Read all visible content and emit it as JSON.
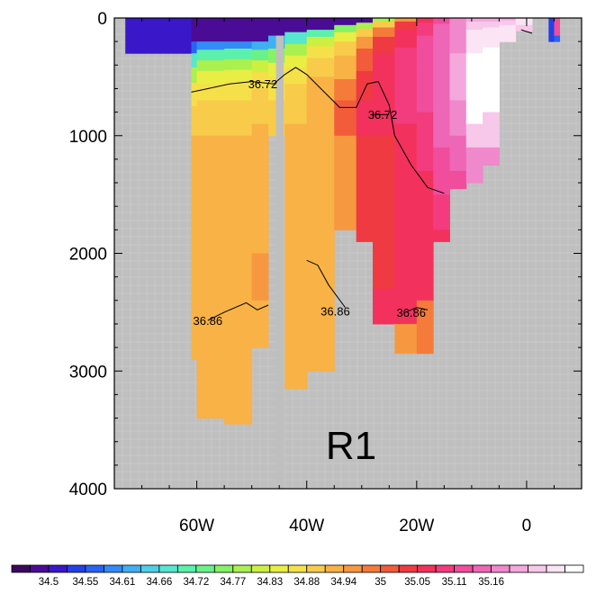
{
  "chart_data": {
    "type": "heatmap",
    "title": "",
    "panel_label": "R1",
    "xlabel": "",
    "ylabel": "",
    "xlim": [
      -75,
      10
    ],
    "ylim": [
      4000,
      0
    ],
    "x_ticks": [
      {
        "value": -60,
        "label": "60W"
      },
      {
        "value": -40,
        "label": "40W"
      },
      {
        "value": -20,
        "label": "20W"
      },
      {
        "value": 0,
        "label": "0"
      }
    ],
    "y_ticks": [
      {
        "value": 0,
        "label": "0"
      },
      {
        "value": 1000,
        "label": "1000"
      },
      {
        "value": 2000,
        "label": "2000"
      },
      {
        "value": 3000,
        "label": "3000"
      },
      {
        "value": 4000,
        "label": "4000"
      }
    ],
    "background_color": "#bfbfbf",
    "colorbar": {
      "colors": [
        "#3a0a5e",
        "#4a0c94",
        "#3a17c8",
        "#2440e6",
        "#2a63f2",
        "#338bf5",
        "#3fb0f2",
        "#4fcfe8",
        "#57e6cf",
        "#5bf0ac",
        "#6af28a",
        "#86f266",
        "#aaf04f",
        "#ccf042",
        "#e8ee44",
        "#f5e04a",
        "#f8cb4b",
        "#f8b245",
        "#f6983f",
        "#f47b39",
        "#f25c3a",
        "#f03a42",
        "#f2325c",
        "#f23c7e",
        "#f04d9c",
        "#ee66b6",
        "#f088cc",
        "#f4a8dc",
        "#f7c8ea",
        "#fbe4f4",
        "#ffffff"
      ],
      "labels": [
        "34.5",
        "34.55",
        "34.61",
        "34.66",
        "34.72",
        "34.77",
        "34.83",
        "34.88",
        "34.94",
        "35",
        "35.05",
        "35.11",
        "35.16"
      ]
    },
    "columns": [
      {
        "x0": -73.0,
        "x1": -61.0,
        "layers": [
          [
            0,
            300,
            2
          ]
        ]
      },
      {
        "x0": -61.0,
        "x1": -60.0,
        "layers": [
          [
            0,
            200,
            1
          ],
          [
            200,
            300,
            4
          ],
          [
            300,
            420,
            8
          ],
          [
            420,
            550,
            12
          ],
          [
            550,
            750,
            15
          ],
          [
            750,
            1000,
            16
          ],
          [
            1000,
            2200,
            17
          ],
          [
            2200,
            2900,
            17
          ]
        ]
      },
      {
        "x0": -60.0,
        "x1": -55.0,
        "layers": [
          [
            0,
            200,
            1
          ],
          [
            200,
            270,
            5
          ],
          [
            270,
            360,
            9
          ],
          [
            360,
            450,
            12
          ],
          [
            450,
            560,
            14
          ],
          [
            560,
            700,
            15
          ],
          [
            700,
            1000,
            16
          ],
          [
            1000,
            3400,
            17
          ]
        ]
      },
      {
        "x0": -55.0,
        "x1": -50.0,
        "layers": [
          [
            0,
            200,
            1
          ],
          [
            200,
            260,
            5
          ],
          [
            260,
            350,
            9
          ],
          [
            350,
            440,
            12
          ],
          [
            440,
            540,
            14
          ],
          [
            540,
            700,
            15
          ],
          [
            700,
            1000,
            16
          ],
          [
            1000,
            3450,
            17
          ]
        ]
      },
      {
        "x0": -50.0,
        "x1": -47.0,
        "layers": [
          [
            0,
            200,
            1
          ],
          [
            200,
            270,
            6
          ],
          [
            270,
            360,
            10
          ],
          [
            360,
            460,
            13
          ],
          [
            460,
            600,
            15
          ],
          [
            600,
            900,
            16
          ],
          [
            900,
            2000,
            17
          ],
          [
            2000,
            2400,
            18
          ],
          [
            2400,
            2800,
            17
          ]
        ]
      },
      {
        "x0": -47.0,
        "x1": -44.0,
        "layers": [
          [
            0,
            150,
            1
          ],
          [
            150,
            260,
            6
          ],
          [
            260,
            380,
            11
          ],
          [
            380,
            500,
            14
          ],
          [
            500,
            700,
            15
          ],
          [
            700,
            1000,
            16
          ]
        ]
      },
      {
        "x0": -44.0,
        "x1": -40.0,
        "layers": [
          [
            0,
            120,
            1
          ],
          [
            120,
            220,
            8
          ],
          [
            220,
            320,
            12
          ],
          [
            320,
            420,
            14
          ],
          [
            420,
            560,
            15
          ],
          [
            560,
            900,
            16
          ],
          [
            900,
            3150,
            17
          ]
        ]
      },
      {
        "x0": -40.0,
        "x1": -35.0,
        "layers": [
          [
            0,
            100,
            1
          ],
          [
            100,
            160,
            9
          ],
          [
            160,
            240,
            13
          ],
          [
            240,
            340,
            15
          ],
          [
            340,
            500,
            16
          ],
          [
            500,
            800,
            17
          ],
          [
            800,
            2500,
            17
          ],
          [
            2500,
            3000,
            17
          ]
        ]
      },
      {
        "x0": -35.0,
        "x1": -31.0,
        "layers": [
          [
            0,
            60,
            1
          ],
          [
            60,
            120,
            11
          ],
          [
            120,
            200,
            14
          ],
          [
            200,
            320,
            16
          ],
          [
            320,
            520,
            17
          ],
          [
            520,
            700,
            19
          ],
          [
            700,
            1000,
            20
          ],
          [
            1000,
            1800,
            18
          ]
        ]
      },
      {
        "x0": -31.0,
        "x1": -28.0,
        "layers": [
          [
            0,
            40,
            1
          ],
          [
            40,
            90,
            12
          ],
          [
            90,
            160,
            16
          ],
          [
            160,
            260,
            18
          ],
          [
            260,
            450,
            20
          ],
          [
            450,
            700,
            21
          ],
          [
            700,
            1000,
            22
          ],
          [
            1000,
            1900,
            21
          ]
        ]
      },
      {
        "x0": -28.0,
        "x1": -24.0,
        "layers": [
          [
            0,
            30,
            12
          ],
          [
            30,
            80,
            16
          ],
          [
            80,
            160,
            19
          ],
          [
            160,
            300,
            21
          ],
          [
            300,
            600,
            22
          ],
          [
            600,
            1000,
            22
          ],
          [
            1000,
            2300,
            21
          ],
          [
            2300,
            2600,
            22
          ]
        ]
      },
      {
        "x0": -24.0,
        "x1": -20.0,
        "layers": [
          [
            0,
            30,
            18
          ],
          [
            30,
            100,
            21
          ],
          [
            100,
            250,
            22
          ],
          [
            250,
            500,
            23
          ],
          [
            500,
            900,
            23
          ],
          [
            900,
            2000,
            22
          ],
          [
            2000,
            2600,
            22
          ],
          [
            2600,
            2850,
            18
          ]
        ]
      },
      {
        "x0": -20.0,
        "x1": -17.0,
        "layers": [
          [
            0,
            40,
            22
          ],
          [
            40,
            150,
            23
          ],
          [
            150,
            400,
            24
          ],
          [
            400,
            800,
            24
          ],
          [
            800,
            1300,
            23
          ],
          [
            1300,
            2000,
            22
          ],
          [
            2000,
            2400,
            22
          ],
          [
            2400,
            2850,
            19
          ]
        ]
      },
      {
        "x0": -17.0,
        "x1": -14.0,
        "layers": [
          [
            0,
            50,
            24
          ],
          [
            50,
            300,
            25
          ],
          [
            300,
            700,
            25
          ],
          [
            700,
            1100,
            25
          ],
          [
            1100,
            1500,
            24
          ],
          [
            1500,
            1800,
            23
          ],
          [
            1800,
            1900,
            22
          ]
        ]
      },
      {
        "x0": -14.0,
        "x1": -11.0,
        "layers": [
          [
            0,
            40,
            26
          ],
          [
            40,
            300,
            26
          ],
          [
            300,
            700,
            27
          ],
          [
            700,
            1000,
            26
          ],
          [
            1000,
            1300,
            25
          ],
          [
            1300,
            1450,
            24
          ]
        ]
      },
      {
        "x0": -11.0,
        "x1": -8.0,
        "layers": [
          [
            0,
            30,
            27
          ],
          [
            30,
            100,
            28
          ],
          [
            100,
            300,
            29
          ],
          [
            300,
            900,
            30
          ],
          [
            900,
            1100,
            28
          ],
          [
            1100,
            1400,
            26
          ]
        ]
      },
      {
        "x0": -8.0,
        "x1": -5.0,
        "layers": [
          [
            0,
            30,
            27
          ],
          [
            30,
            80,
            28
          ],
          [
            80,
            250,
            29
          ],
          [
            250,
            800,
            30
          ],
          [
            800,
            1100,
            28
          ],
          [
            1100,
            1250,
            26
          ]
        ]
      },
      {
        "x0": -5.0,
        "x1": -2.0,
        "layers": [
          [
            0,
            20,
            27
          ],
          [
            20,
            60,
            28
          ],
          [
            60,
            200,
            29
          ]
        ]
      },
      {
        "x0": -2.0,
        "x1": 1.0,
        "layers": [
          [
            0,
            60,
            29
          ],
          [
            60,
            110,
            28
          ]
        ]
      },
      {
        "x0": 4.0,
        "x1": 5.0,
        "layers": [
          [
            0,
            200,
            3
          ]
        ]
      },
      {
        "x0": 5.0,
        "x1": 6.0,
        "layers": [
          [
            0,
            150,
            24
          ],
          [
            150,
            200,
            4
          ]
        ]
      }
    ],
    "land_mask": [
      {
        "x0": -45.6,
        "x1": -44.2,
        "top": 150,
        "bottom": 4000
      }
    ],
    "contours": [
      {
        "label": "36.72",
        "points": [
          [
            -61,
            630
          ],
          [
            -58,
            600
          ],
          [
            -54,
            560
          ],
          [
            -50,
            540
          ],
          [
            -46,
            560
          ],
          [
            -44,
            480
          ],
          [
            -42,
            420
          ],
          [
            -40,
            480
          ],
          [
            -37,
            620
          ],
          [
            -34,
            760
          ],
          [
            -31,
            760
          ],
          [
            -29,
            560
          ],
          [
            -27,
            540
          ],
          [
            -25,
            740
          ],
          [
            -24,
            1000
          ],
          [
            -21,
            1250
          ],
          [
            -18,
            1440
          ],
          [
            -15,
            1490
          ]
        ],
        "label_x": -48,
        "label_y": 560
      },
      {
        "label": "36.72",
        "points": [
          [
            -28,
            820
          ],
          [
            -25,
            820
          ]
        ],
        "label_x": -26.2,
        "label_y": 820
      },
      {
        "label": "36.86",
        "points": [
          [
            -58,
            2570
          ],
          [
            -55,
            2500
          ],
          [
            -51,
            2420
          ],
          [
            -49,
            2480
          ],
          [
            -47,
            2440
          ]
        ],
        "label_x": -58,
        "label_y": 2570
      },
      {
        "label": "36.86",
        "points": [
          [
            -40,
            2060
          ],
          [
            -38,
            2100
          ],
          [
            -36,
            2270
          ],
          [
            -33,
            2460
          ]
        ],
        "label_x": -34.8,
        "label_y": 2490
      },
      {
        "label": "36.86",
        "points": [
          [
            -22,
            2500
          ],
          [
            -20,
            2460
          ],
          [
            -18,
            2480
          ]
        ],
        "label_x": -21,
        "label_y": 2500
      },
      {
        "label": "",
        "points": [
          [
            -1,
            100
          ],
          [
            1,
            130
          ]
        ],
        "label_x": 0,
        "label_y": 0
      }
    ]
  }
}
